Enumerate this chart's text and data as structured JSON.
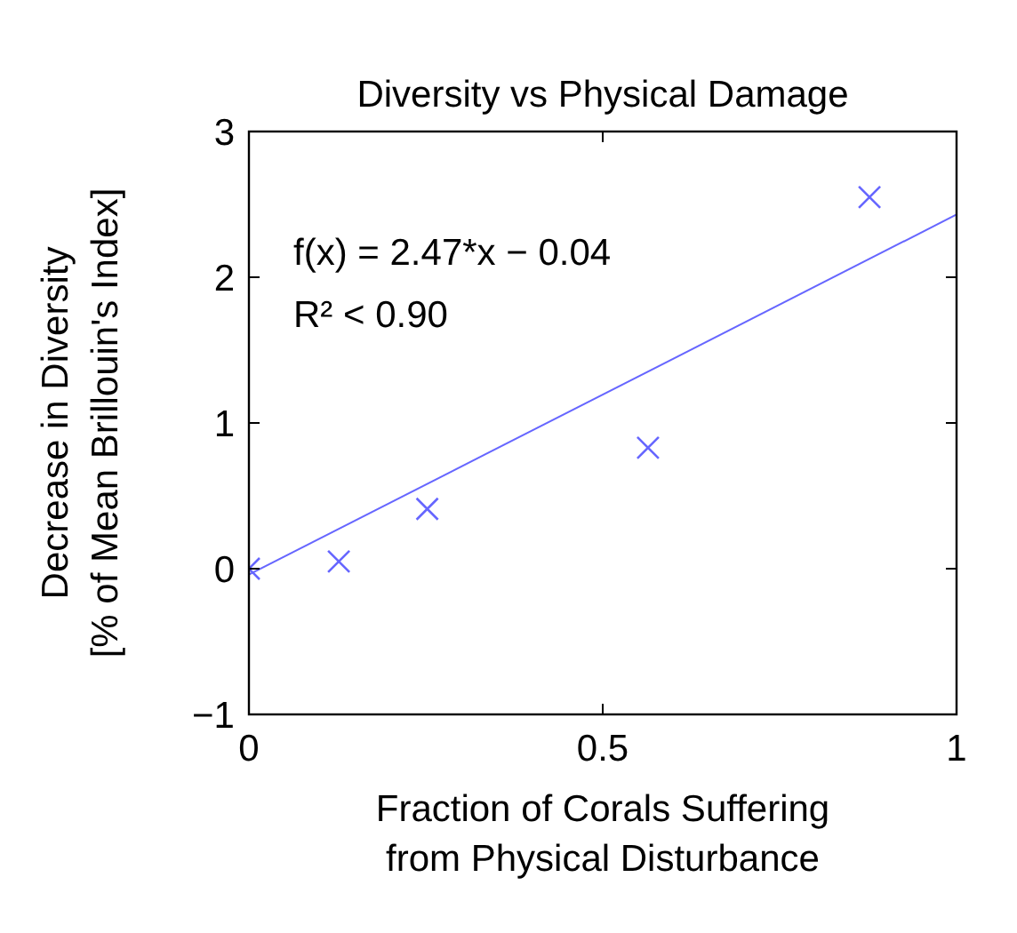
{
  "chart_data": {
    "type": "scatter",
    "title": "Diversity vs Physical Damage",
    "xlabel": "Fraction of Corals Suffering\nfrom Physical Disturbance",
    "ylabel": "Decrease in Diversity\n[% of Mean Brillouin's Index]",
    "annotations": [
      "f(x) = 2.47*x − 0.04",
      "R² < 0.90"
    ],
    "series": [
      {
        "color": "#6666ff",
        "marker": "cross",
        "x": [
          0,
          0.127,
          0.252,
          0.564,
          0.877
        ],
        "values": [
          0,
          0.05,
          0.41,
          0.83,
          2.55
        ]
      },
      {
        "type": "line",
        "color": "#6666ff",
        "x": [
          0,
          1
        ],
        "values": [
          -0.04,
          2.43
        ]
      }
    ],
    "xlim": [
      0,
      1
    ],
    "ylim": [
      -1,
      3
    ],
    "xticks": [
      0,
      0.5,
      1
    ],
    "yticks": [
      -1,
      0,
      1,
      2,
      3
    ],
    "grid": false
  }
}
